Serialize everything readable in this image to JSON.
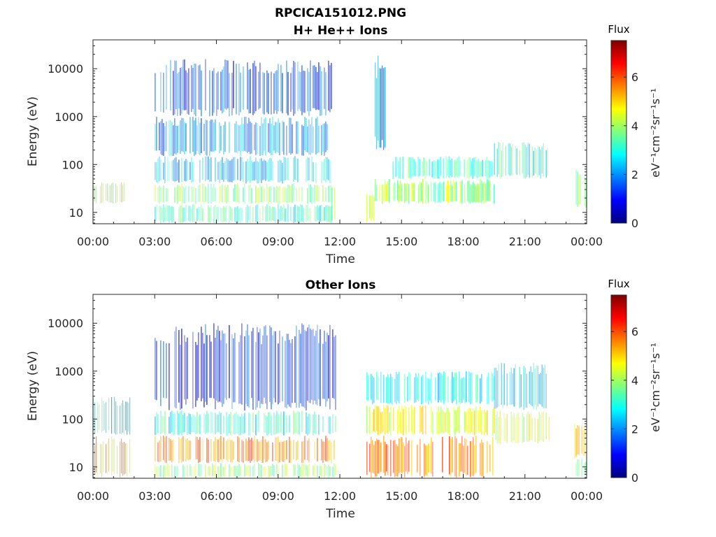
{
  "figure": {
    "title_line1": "RPCICA151012.PNG"
  },
  "colormap": [
    "#00007f",
    "#0000ff",
    "#007fff",
    "#00ffff",
    "#7fff7f",
    "#ffff00",
    "#ff7f00",
    "#ff0000",
    "#7f0000"
  ],
  "chart_data": [
    {
      "type": "heatmap",
      "title": "H+ He++ Ions",
      "xlabel": "Time",
      "ylabel": "Energy (eV)",
      "x_range_hours": [
        0,
        24
      ],
      "x_ticks": [
        "00:00",
        "03:00",
        "06:00",
        "09:00",
        "12:00",
        "15:00",
        "18:00",
        "21:00",
        "00:00"
      ],
      "y_scale": "log",
      "y_range": [
        5.8,
        40000
      ],
      "y_ticks": [
        10,
        100,
        1000,
        10000
      ],
      "y_tick_labels": [
        "10",
        "100",
        "1000",
        "10000"
      ],
      "colorbar": {
        "label": "Flux",
        "unit": "eV⁻¹cm⁻²sr⁻¹s⁻¹",
        "range": [
          0,
          7.5
        ],
        "ticks": [
          0,
          2,
          4,
          6
        ]
      },
      "flux_regions": [
        {
          "t_start": 0.0,
          "t_end": 1.5,
          "e_low": 15,
          "e_high": 45,
          "flux": 4.3
        },
        {
          "t_start": 3.0,
          "t_end": 11.6,
          "e_low": 6,
          "e_high": 15,
          "flux": 3.2
        },
        {
          "t_start": 3.0,
          "t_end": 11.6,
          "e_low": 15,
          "e_high": 40,
          "flux": 3.8
        },
        {
          "t_start": 3.0,
          "t_end": 11.6,
          "e_low": 40,
          "e_high": 150,
          "flux": 2.5
        },
        {
          "t_start": 3.0,
          "t_end": 11.6,
          "e_low": 150,
          "e_high": 1000,
          "flux": 2.0
        },
        {
          "t_start": 3.0,
          "t_end": 11.6,
          "e_low": 1000,
          "e_high": 16000,
          "flux": 1.5
        },
        {
          "t_start": 11.6,
          "t_end": 11.8,
          "e_low": 6,
          "e_high": 40,
          "flux": 3.6
        },
        {
          "t_start": 13.3,
          "t_end": 13.7,
          "e_low": 6,
          "e_high": 30,
          "flux": 4.6
        },
        {
          "t_start": 13.7,
          "t_end": 14.3,
          "e_low": 200,
          "e_high": 20000,
          "flux": 1.6
        },
        {
          "t_start": 13.7,
          "t_end": 19.5,
          "e_low": 15,
          "e_high": 50,
          "flux": 4.0
        },
        {
          "t_start": 14.5,
          "t_end": 19.5,
          "e_low": 50,
          "e_high": 150,
          "flux": 3.2
        },
        {
          "t_start": 19.5,
          "t_end": 22.2,
          "e_low": 50,
          "e_high": 300,
          "flux": 3.0
        },
        {
          "t_start": 23.4,
          "t_end": 24.0,
          "e_low": 12,
          "e_high": 80,
          "flux": 3.8
        }
      ]
    },
    {
      "type": "heatmap",
      "title": "Other Ions",
      "xlabel": "Time",
      "ylabel": "Energy (eV)",
      "x_range_hours": [
        0,
        24
      ],
      "x_ticks": [
        "00:00",
        "03:00",
        "06:00",
        "09:00",
        "12:00",
        "15:00",
        "18:00",
        "21:00",
        "00:00"
      ],
      "y_scale": "log",
      "y_range": [
        5.8,
        40000
      ],
      "y_ticks": [
        10,
        100,
        1000,
        10000
      ],
      "y_tick_labels": [
        "10",
        "100",
        "1000",
        "10000"
      ],
      "colorbar": {
        "label": "Flux",
        "unit": "eV⁻¹cm⁻²sr⁻¹s⁻¹",
        "range": [
          0,
          7.5
        ],
        "ticks": [
          0,
          2,
          4,
          6
        ]
      },
      "flux_regions": [
        {
          "t_start": 0.0,
          "t_end": 1.8,
          "e_low": 6,
          "e_high": 45,
          "flux": 5.0
        },
        {
          "t_start": 0.0,
          "t_end": 1.8,
          "e_low": 45,
          "e_high": 300,
          "flux": 3.0
        },
        {
          "t_start": 3.0,
          "t_end": 11.8,
          "e_low": 6,
          "e_high": 12,
          "flux": 4.0
        },
        {
          "t_start": 3.0,
          "t_end": 11.8,
          "e_low": 12,
          "e_high": 45,
          "flux": 5.6
        },
        {
          "t_start": 3.0,
          "t_end": 11.8,
          "e_low": 45,
          "e_high": 150,
          "flux": 3.0
        },
        {
          "t_start": 3.0,
          "t_end": 11.8,
          "e_low": 150,
          "e_high": 10000,
          "flux": 1.2
        },
        {
          "t_start": 13.3,
          "t_end": 19.5,
          "e_low": 6,
          "e_high": 45,
          "flux": 5.8
        },
        {
          "t_start": 13.3,
          "t_end": 19.5,
          "e_low": 45,
          "e_high": 200,
          "flux": 4.6
        },
        {
          "t_start": 13.3,
          "t_end": 19.5,
          "e_low": 200,
          "e_high": 1000,
          "flux": 2.8
        },
        {
          "t_start": 19.5,
          "t_end": 22.2,
          "e_low": 30,
          "e_high": 150,
          "flux": 4.2
        },
        {
          "t_start": 19.5,
          "t_end": 22.2,
          "e_low": 150,
          "e_high": 1500,
          "flux": 2.6
        },
        {
          "t_start": 23.4,
          "t_end": 24.0,
          "e_low": 15,
          "e_high": 80,
          "flux": 5.5
        },
        {
          "t_start": 23.4,
          "t_end": 24.0,
          "e_low": 6,
          "e_high": 15,
          "flux": 3.5
        }
      ]
    }
  ]
}
